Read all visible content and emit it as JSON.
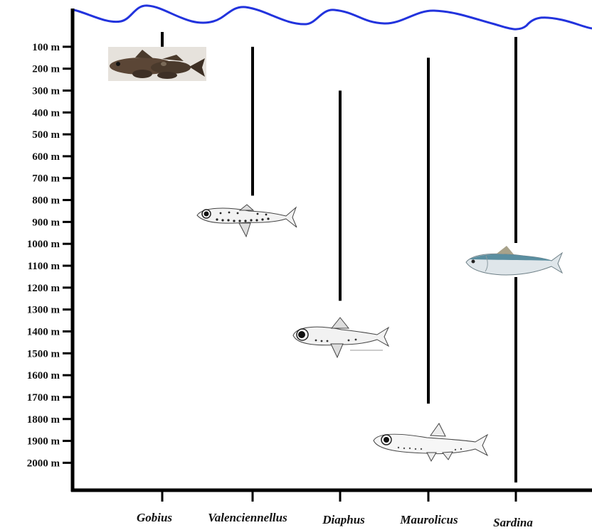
{
  "depth_axis": {
    "ticks": [
      "100 m",
      "200 m",
      "300 m",
      "400 m",
      "500 m",
      "600 m",
      "700 m",
      "800 m",
      "900 m",
      "1000 m",
      "1100 m",
      "1200 m",
      "1300 m",
      "1400 m",
      "1500 m",
      "1600 m",
      "1700 m",
      "1800 m",
      "1900 m",
      "2000 m"
    ]
  },
  "genera": [
    {
      "name": "Gobius",
      "min_depth_m": 0,
      "max_depth_m": 100,
      "fish_icon": "goby-photo-icon"
    },
    {
      "name": "Valenciennellus",
      "min_depth_m": 100,
      "max_depth_m": 780,
      "fish_icon": "hatchetfish-drawing-icon"
    },
    {
      "name": "Diaphus",
      "min_depth_m": 300,
      "max_depth_m": 1260,
      "fish_icon": "lanternfish-drawing-icon"
    },
    {
      "name": "Maurolicus",
      "min_depth_m": 150,
      "max_depth_m": 1730,
      "fish_icon": "pearlside-drawing-icon"
    },
    {
      "name": "Sardina",
      "min_depth_m": 20,
      "max_depth_m": 2090,
      "fish_icon": "sardine-photo-icon"
    }
  ],
  "colors": {
    "water_surface": "#2233dd",
    "axis": "#000000",
    "range_bar": "#000000",
    "sardine_back": "#5a8ea0",
    "goby_body": "#5b4636"
  }
}
